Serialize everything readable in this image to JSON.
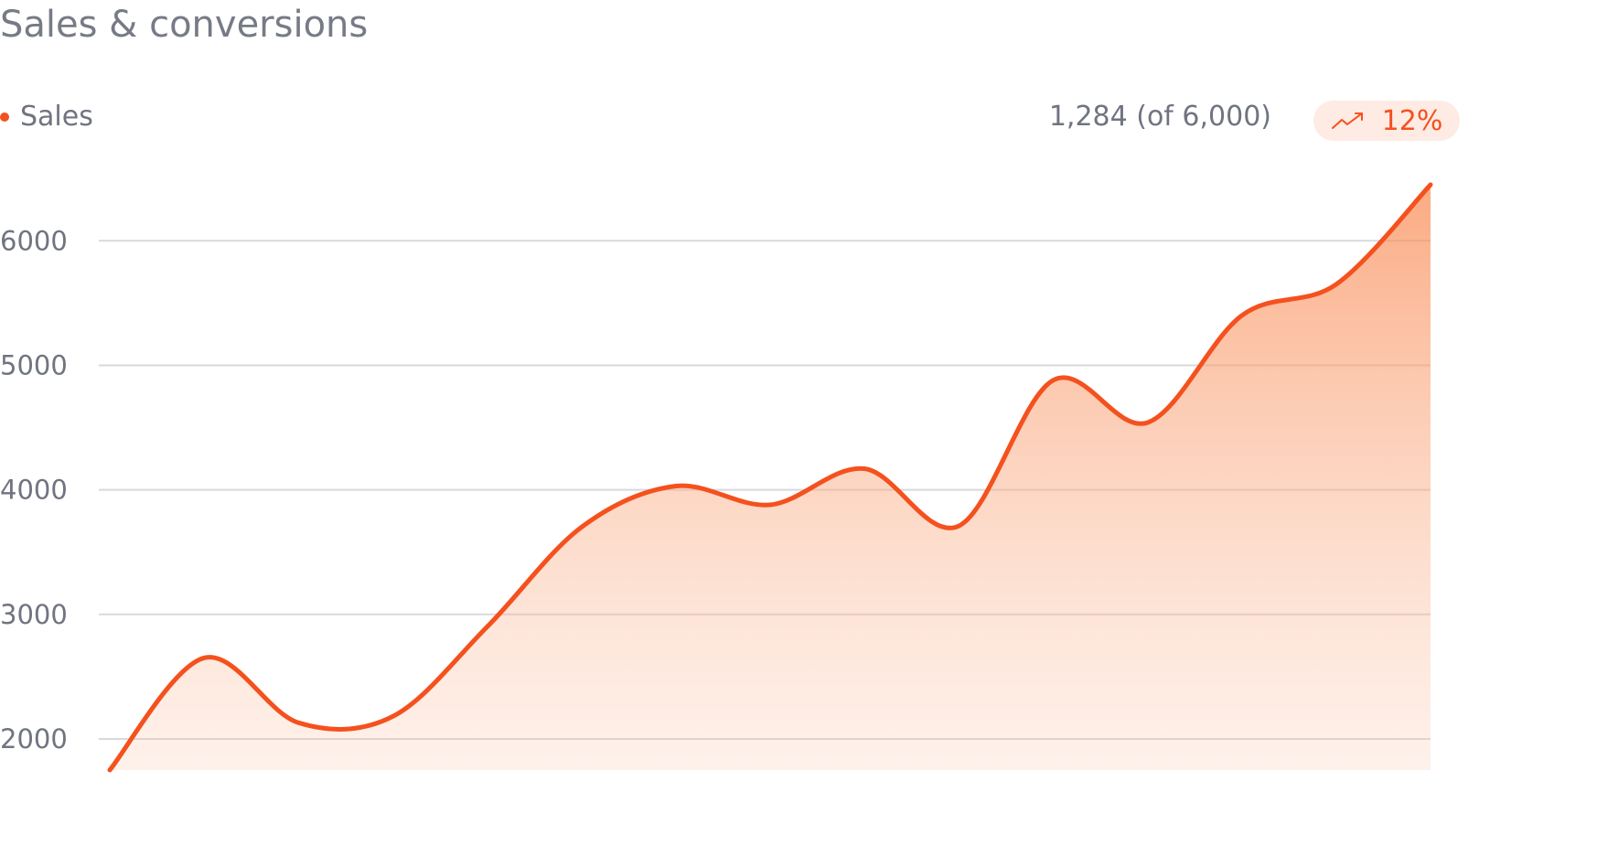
{
  "header": {
    "title": "Sales & conversions"
  },
  "legend": {
    "label": "Sales",
    "dot_color": "#f4511e"
  },
  "summary": {
    "text": "1,284 (of 6,000)",
    "badge": {
      "value": "12%",
      "icon": "trending-up-icon",
      "color": "#f4511e",
      "background": "#feebe3"
    }
  },
  "chart_data": {
    "type": "area",
    "series": [
      {
        "name": "Sales",
        "color": "#f4511e",
        "x": [
          0,
          1,
          2,
          3,
          4,
          5,
          6,
          7,
          8,
          9,
          10,
          11,
          12,
          13,
          14,
          15,
          16
        ],
        "values": [
          1750,
          2650,
          2130,
          2180,
          2900,
          3700,
          4030,
          3880,
          4170,
          3710,
          4880,
          4540,
          5400,
          5650,
          6450,
          6000,
          6000
        ]
      }
    ],
    "yticks": [
      "2000",
      "3000",
      "4000",
      "5000",
      "6000"
    ],
    "ylim": [
      1750,
      6450
    ],
    "grid": true,
    "xlabel": "",
    "ylabel": ""
  }
}
